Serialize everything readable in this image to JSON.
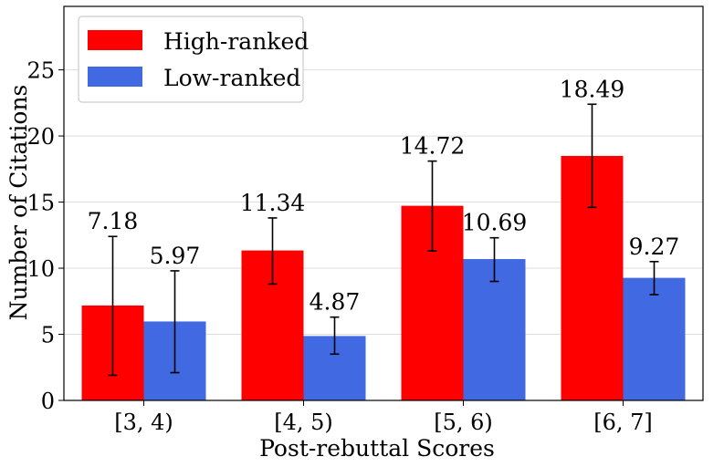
{
  "chart_data": {
    "type": "bar",
    "xlabel": "Post-rebuttal Scores",
    "ylabel": "Number of Citations",
    "categories": [
      "[3, 4)",
      "[4, 5)",
      "[5, 6)",
      "[6, 7]"
    ],
    "ylim": [
      0,
      29.8
    ],
    "yticks": [
      0,
      5,
      10,
      15,
      20,
      25
    ],
    "grid": "horizontal",
    "legend_position": "top-left",
    "series": [
      {
        "name": "High-ranked",
        "color": "#ff0000",
        "values": [
          7.18,
          11.34,
          14.72,
          18.49
        ],
        "value_labels": [
          "7.18",
          "11.34",
          "14.72",
          "18.49"
        ],
        "error_low": [
          1.9,
          8.8,
          11.3,
          14.6
        ],
        "error_high": [
          12.4,
          13.8,
          18.1,
          22.4
        ]
      },
      {
        "name": "Low-ranked",
        "color": "#4169e1",
        "values": [
          5.97,
          4.87,
          10.69,
          9.27
        ],
        "value_labels": [
          "5.97",
          "4.87",
          "10.69",
          "9.27"
        ],
        "error_low": [
          2.1,
          3.5,
          9.0,
          8.0
        ],
        "error_high": [
          9.8,
          6.3,
          12.3,
          10.5
        ]
      }
    ]
  }
}
